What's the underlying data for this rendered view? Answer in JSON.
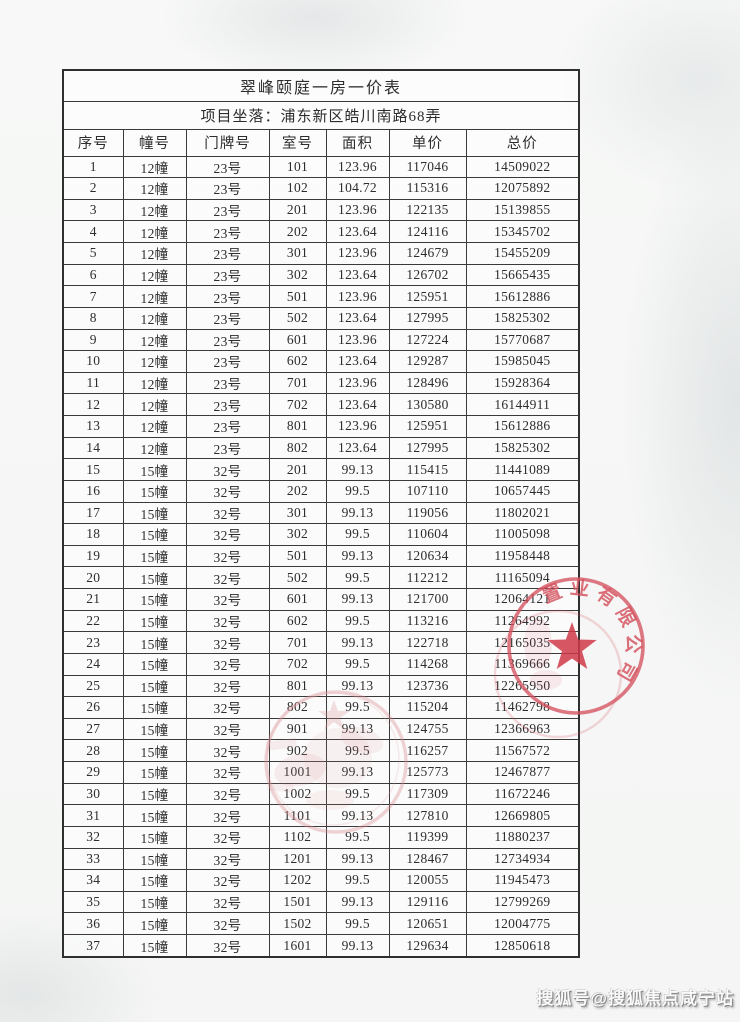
{
  "page": {
    "title": "翠峰颐庭一房一价表",
    "location_line": "项目坐落：浦东新区皓川南路68弄",
    "watermark": "搜狐号@搜狐焦点咸宁站"
  },
  "table": {
    "headers": [
      "序号",
      "幢号",
      "门牌号",
      "室号",
      "面积",
      "单价",
      "总价"
    ],
    "rows": [
      [
        "1",
        "12幢",
        "23号",
        "101",
        "123.96",
        "117046",
        "14509022"
      ],
      [
        "2",
        "12幢",
        "23号",
        "102",
        "104.72",
        "115316",
        "12075892"
      ],
      [
        "3",
        "12幢",
        "23号",
        "201",
        "123.96",
        "122135",
        "15139855"
      ],
      [
        "4",
        "12幢",
        "23号",
        "202",
        "123.64",
        "124116",
        "15345702"
      ],
      [
        "5",
        "12幢",
        "23号",
        "301",
        "123.96",
        "124679",
        "15455209"
      ],
      [
        "6",
        "12幢",
        "23号",
        "302",
        "123.64",
        "126702",
        "15665435"
      ],
      [
        "7",
        "12幢",
        "23号",
        "501",
        "123.96",
        "125951",
        "15612886"
      ],
      [
        "8",
        "12幢",
        "23号",
        "502",
        "123.64",
        "127995",
        "15825302"
      ],
      [
        "9",
        "12幢",
        "23号",
        "601",
        "123.96",
        "127224",
        "15770687"
      ],
      [
        "10",
        "12幢",
        "23号",
        "602",
        "123.64",
        "129287",
        "15985045"
      ],
      [
        "11",
        "12幢",
        "23号",
        "701",
        "123.96",
        "128496",
        "15928364"
      ],
      [
        "12",
        "12幢",
        "23号",
        "702",
        "123.64",
        "130580",
        "16144911"
      ],
      [
        "13",
        "12幢",
        "23号",
        "801",
        "123.96",
        "125951",
        "15612886"
      ],
      [
        "14",
        "12幢",
        "23号",
        "802",
        "123.64",
        "127995",
        "15825302"
      ],
      [
        "15",
        "15幢",
        "32号",
        "201",
        "99.13",
        "115415",
        "11441089"
      ],
      [
        "16",
        "15幢",
        "32号",
        "202",
        "99.5",
        "107110",
        "10657445"
      ],
      [
        "17",
        "15幢",
        "32号",
        "301",
        "99.13",
        "119056",
        "11802021"
      ],
      [
        "18",
        "15幢",
        "32号",
        "302",
        "99.5",
        "110604",
        "11005098"
      ],
      [
        "19",
        "15幢",
        "32号",
        "501",
        "99.13",
        "120634",
        "11958448"
      ],
      [
        "20",
        "15幢",
        "32号",
        "502",
        "99.5",
        "112212",
        "11165094"
      ],
      [
        "21",
        "15幢",
        "32号",
        "601",
        "99.13",
        "121700",
        "12064121"
      ],
      [
        "22",
        "15幢",
        "32号",
        "602",
        "99.5",
        "113216",
        "11264992"
      ],
      [
        "23",
        "15幢",
        "32号",
        "701",
        "99.13",
        "122718",
        "12165035"
      ],
      [
        "24",
        "15幢",
        "32号",
        "702",
        "99.5",
        "114268",
        "11369666"
      ],
      [
        "25",
        "15幢",
        "32号",
        "801",
        "99.13",
        "123736",
        "12265950"
      ],
      [
        "26",
        "15幢",
        "32号",
        "802",
        "99.5",
        "115204",
        "11462798"
      ],
      [
        "27",
        "15幢",
        "32号",
        "901",
        "99.13",
        "124755",
        "12366963"
      ],
      [
        "28",
        "15幢",
        "32号",
        "902",
        "99.5",
        "116257",
        "11567572"
      ],
      [
        "29",
        "15幢",
        "32号",
        "1001",
        "99.13",
        "125773",
        "12467877"
      ],
      [
        "30",
        "15幢",
        "32号",
        "1002",
        "99.5",
        "117309",
        "11672246"
      ],
      [
        "31",
        "15幢",
        "32号",
        "1101",
        "99.13",
        "127810",
        "12669805"
      ],
      [
        "32",
        "15幢",
        "32号",
        "1102",
        "99.5",
        "119399",
        "11880237"
      ],
      [
        "33",
        "15幢",
        "32号",
        "1201",
        "99.13",
        "128467",
        "12734934"
      ],
      [
        "34",
        "15幢",
        "32号",
        "1202",
        "99.5",
        "120055",
        "11945473"
      ],
      [
        "35",
        "15幢",
        "32号",
        "1501",
        "99.13",
        "129116",
        "12799269"
      ],
      [
        "36",
        "15幢",
        "32号",
        "1502",
        "99.5",
        "120651",
        "12004775"
      ],
      [
        "37",
        "15幢",
        "32号",
        "1601",
        "99.13",
        "129634",
        "12850618"
      ]
    ]
  },
  "stamps": {
    "company_seal_text": "置业有限公司",
    "seal_color": "#d5525f"
  }
}
